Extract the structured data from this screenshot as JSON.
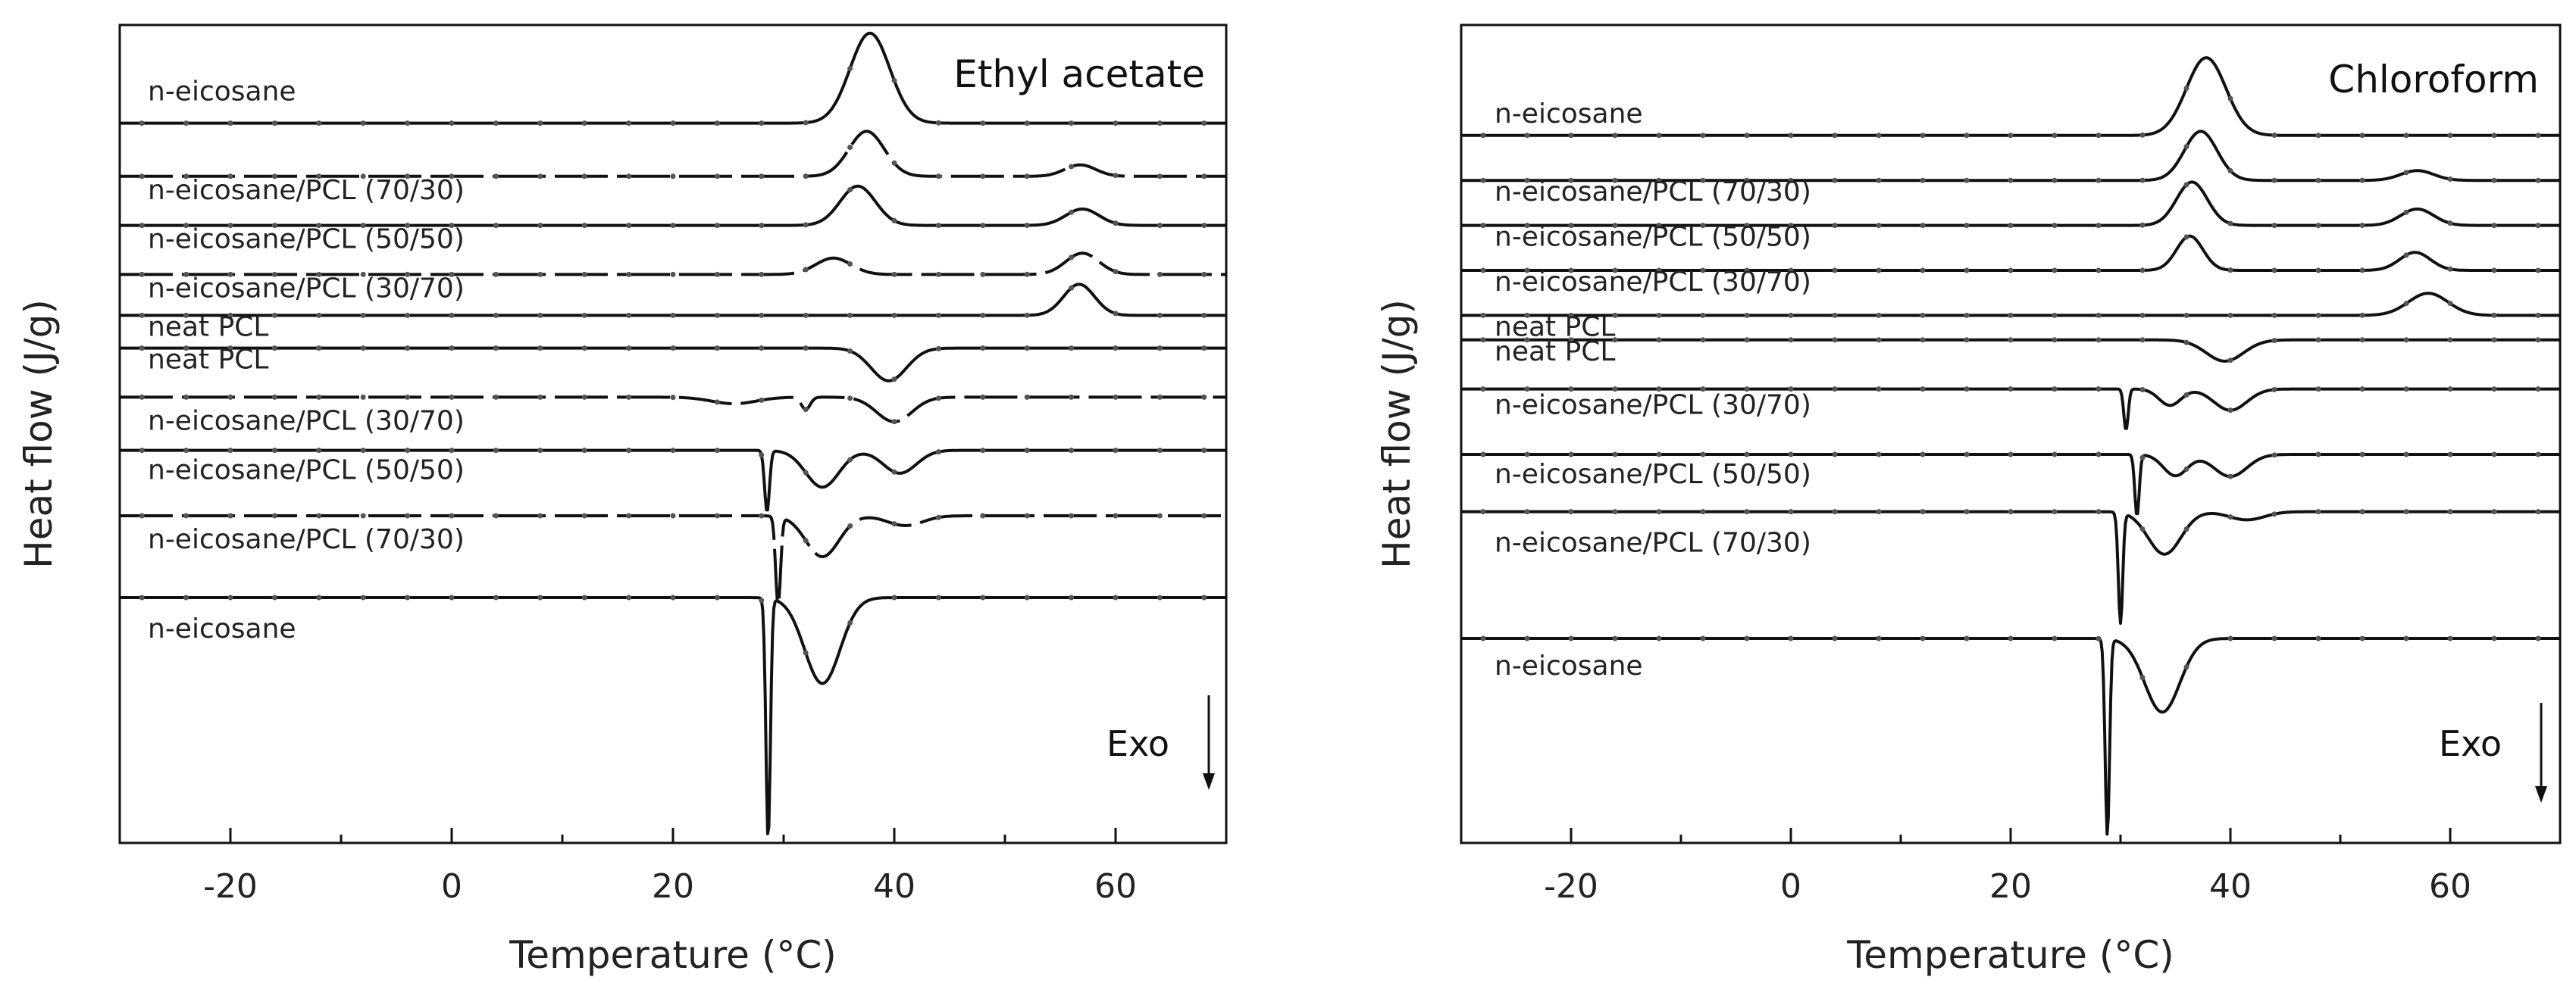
{
  "chart_data": [
    {
      "type": "line",
      "title": "Ethyl acetate",
      "xlabel": "Temperature (°C)",
      "ylabel": "Heat flow (J/g)",
      "xlim": [
        -30,
        70
      ],
      "xticks": [
        -20,
        0,
        20,
        40,
        60
      ],
      "ylim": [
        0,
        100
      ],
      "direction_annotation": "Exo",
      "series": [
        {
          "name": "n-eicosane",
          "mode": "heating",
          "baseline": 88,
          "style": "solid",
          "peaks": [
            {
              "center": 37.8,
              "height": 11,
              "width": 1.8
            }
          ]
        },
        {
          "name": "n-eicosane/PCL (70/30)",
          "mode": "heating",
          "baseline": 81.5,
          "style": "dashed",
          "peaks": [
            {
              "center": 37.5,
              "height": 5.5,
              "width": 1.6
            },
            {
              "center": 56.8,
              "height": 1.4,
              "width": 1.4
            }
          ]
        },
        {
          "name": "n-eicosane/PCL (50/50)",
          "mode": "heating",
          "baseline": 75.5,
          "style": "solid",
          "peaks": [
            {
              "center": 36.7,
              "height": 4.8,
              "width": 1.6
            },
            {
              "center": 57.0,
              "height": 2.0,
              "width": 1.5
            }
          ]
        },
        {
          "name": "n-eicosane/PCL (30/70)",
          "mode": "heating",
          "baseline": 69.5,
          "style": "dashed",
          "peaks": [
            {
              "center": 34.5,
              "height": 2.0,
              "width": 1.6
            },
            {
              "center": 57.0,
              "height": 2.6,
              "width": 1.5
            }
          ]
        },
        {
          "name": "neat PCL",
          "mode": "heating",
          "baseline": 64.5,
          "style": "solid",
          "peaks": [
            {
              "center": 56.7,
              "height": 3.8,
              "width": 1.4
            }
          ]
        },
        {
          "name": "neat PCL",
          "mode": "cooling",
          "baseline": 60.5,
          "style": "solid",
          "peaks": [
            {
              "center": 39.5,
              "height": -4.0,
              "width": 1.6
            }
          ]
        },
        {
          "name": "n-eicosane/PCL (30/70)",
          "mode": "cooling",
          "baseline": 54.5,
          "style": "dashed",
          "peaks": [
            {
              "center": 25.5,
              "height": -0.8,
              "width": 2.0
            },
            {
              "center": 32.0,
              "height": -1.5,
              "width": 0.4
            },
            {
              "center": 40.0,
              "height": -3.0,
              "width": 1.6
            }
          ]
        },
        {
          "name": "n-eicosane/PCL (50/50)",
          "mode": "cooling",
          "baseline": 48.0,
          "style": "solid",
          "peaks": [
            {
              "center": 28.5,
              "height": -7.5,
              "width": 0.22
            },
            {
              "center": 33.5,
              "height": -4.5,
              "width": 1.5
            },
            {
              "center": 40.5,
              "height": -2.8,
              "width": 1.5
            }
          ]
        },
        {
          "name": "n-eicosane/PCL (70/30)",
          "mode": "cooling",
          "baseline": 40.0,
          "style": "dashed",
          "peaks": [
            {
              "center": 29.5,
              "height": -11.0,
              "width": 0.22
            },
            {
              "center": 33.5,
              "height": -5.0,
              "width": 1.5
            },
            {
              "center": 41.0,
              "height": -1.2,
              "width": 1.6
            }
          ]
        },
        {
          "name": "n-eicosane",
          "mode": "cooling",
          "baseline": 30.0,
          "style": "solid",
          "peaks": [
            {
              "center": 28.6,
              "height": -29.5,
              "width": 0.2
            },
            {
              "center": 33.5,
              "height": -10.5,
              "width": 1.6
            }
          ]
        }
      ]
    },
    {
      "type": "line",
      "title": "Chloroform",
      "xlabel": "Temperature (°C)",
      "ylabel": "Heat flow (J/g)",
      "xlim": [
        -30,
        70
      ],
      "xticks": [
        -20,
        0,
        20,
        40,
        60
      ],
      "ylim": [
        0,
        100
      ],
      "direction_annotation": "Exo",
      "series": [
        {
          "name": "n-eicosane",
          "mode": "heating",
          "baseline": 86.5,
          "style": "solid",
          "peaks": [
            {
              "center": 37.8,
              "height": 9.5,
              "width": 1.8
            }
          ]
        },
        {
          "name": "n-eicosane/PCL (70/30)",
          "mode": "heating",
          "baseline": 81.0,
          "style": "solid",
          "peaks": [
            {
              "center": 37.3,
              "height": 6.0,
              "width": 1.5
            },
            {
              "center": 57.0,
              "height": 1.2,
              "width": 1.5
            }
          ]
        },
        {
          "name": "n-eicosane/PCL (50/50)",
          "mode": "heating",
          "baseline": 75.5,
          "style": "solid",
          "peaks": [
            {
              "center": 36.5,
              "height": 5.3,
              "width": 1.4
            },
            {
              "center": 57.0,
              "height": 2.0,
              "width": 1.5
            }
          ]
        },
        {
          "name": "n-eicosane/PCL (30/70)",
          "mode": "heating",
          "baseline": 70.0,
          "style": "solid",
          "peaks": [
            {
              "center": 36.3,
              "height": 4.2,
              "width": 1.2
            },
            {
              "center": 56.8,
              "height": 2.2,
              "width": 1.4
            }
          ]
        },
        {
          "name": "neat PCL",
          "mode": "heating",
          "baseline": 64.5,
          "style": "solid",
          "peaks": [
            {
              "center": 58.0,
              "height": 2.7,
              "width": 1.8
            }
          ]
        },
        {
          "name": "neat PCL",
          "mode": "cooling",
          "baseline": 61.5,
          "style": "solid",
          "peaks": [
            {
              "center": 39.5,
              "height": -2.6,
              "width": 1.7
            }
          ]
        },
        {
          "name": "n-eicosane/PCL (30/70)",
          "mode": "cooling",
          "baseline": 55.5,
          "style": "solid",
          "peaks": [
            {
              "center": 30.5,
              "height": -5.0,
              "width": 0.2
            },
            {
              "center": 34.5,
              "height": -2.0,
              "width": 1.0
            },
            {
              "center": 40.0,
              "height": -2.6,
              "width": 1.5
            }
          ]
        },
        {
          "name": "n-eicosane/PCL (50/50)",
          "mode": "cooling",
          "baseline": 47.5,
          "style": "solid",
          "peaks": [
            {
              "center": 31.5,
              "height": -7.5,
              "width": 0.2
            },
            {
              "center": 35.0,
              "height": -2.6,
              "width": 1.1
            },
            {
              "center": 40.0,
              "height": -2.7,
              "width": 1.5
            }
          ]
        },
        {
          "name": "n-eicosane/PCL (70/30)",
          "mode": "cooling",
          "baseline": 40.5,
          "style": "solid",
          "peaks": [
            {
              "center": 30.0,
              "height": -13.5,
              "width": 0.2
            },
            {
              "center": 34.0,
              "height": -5.2,
              "width": 1.5
            },
            {
              "center": 41.5,
              "height": -1.0,
              "width": 1.6
            }
          ]
        },
        {
          "name": "n-eicosane",
          "mode": "cooling",
          "baseline": 25.0,
          "style": "solid",
          "peaks": [
            {
              "center": 28.8,
              "height": -24.0,
              "width": 0.2
            },
            {
              "center": 33.8,
              "height": -9.0,
              "width": 1.6
            }
          ]
        }
      ]
    }
  ]
}
